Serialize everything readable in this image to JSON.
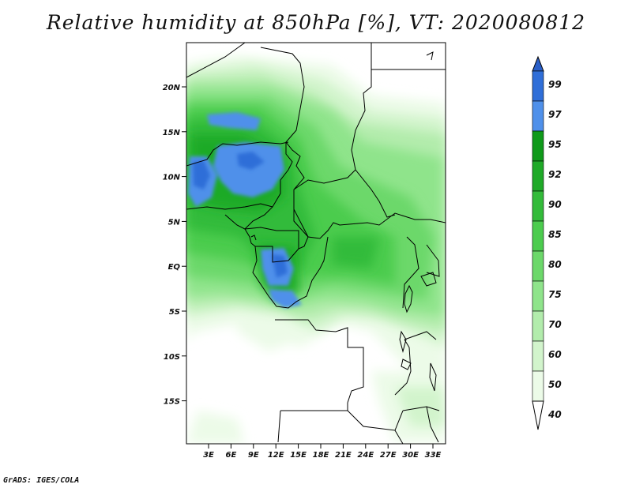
{
  "map": {
    "title": "Relative humidity at 850hPa [%], VT: 2020080812",
    "footer": "GrADS: IGES/COLA",
    "lat_ticks": [
      "20N",
      "15N",
      "10N",
      "5N",
      "EQ",
      "5S",
      "10S",
      "15S"
    ],
    "lon_ticks": [
      "3E",
      "6E",
      "9E",
      "12E",
      "15E",
      "18E",
      "21E",
      "24E",
      "27E",
      "30E",
      "33E"
    ],
    "colorbar": {
      "levels": [
        "99",
        "97",
        "95",
        "92",
        "90",
        "85",
        "80",
        "75",
        "70",
        "60",
        "50",
        "40"
      ],
      "colors": [
        "#2a5fc8",
        "#2f6ed8",
        "#4f90ea",
        "#0f9a1a",
        "#1faa28",
        "#33bb3a",
        "#4ccc4e",
        "#6cd86a",
        "#8fe48b",
        "#b2ecac",
        "#d2f4cc",
        "#ecfbe8"
      ]
    },
    "colors": {
      "border": "#000000",
      "very_dry": "#ffffff"
    }
  }
}
